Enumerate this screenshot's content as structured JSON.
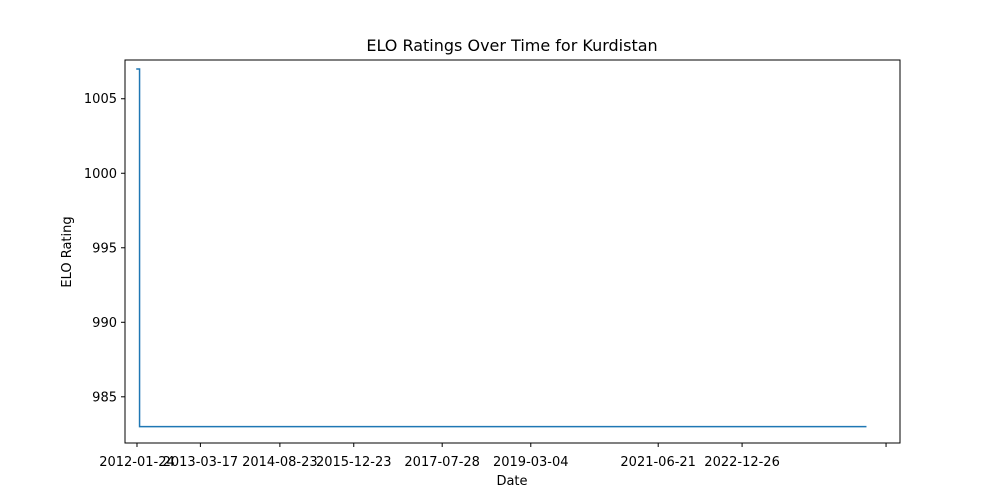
{
  "chart_data": {
    "type": "line",
    "title": "ELO Ratings Over Time for Kurdistan",
    "xlabel": "Date",
    "ylabel": "ELO Rating",
    "x_axis_type": "date",
    "xlim": [
      "2011-11-06",
      "2025-11-01"
    ],
    "ylim": [
      981.9,
      1007.6
    ],
    "x_ticks": [
      {
        "date": "2012-01-24",
        "label": "2012-01-24"
      },
      {
        "date": "2013-03-17",
        "label": "2013-03-17"
      },
      {
        "date": "2014-08-23",
        "label": "2014-08-23"
      },
      {
        "date": "2015-12-23",
        "label": "2015-12-23"
      },
      {
        "date": "2017-07-28",
        "label": "2017-07-28"
      },
      {
        "date": "2019-03-04",
        "label": "2019-03-04"
      },
      {
        "date": "2021-06-21",
        "label": "2021-06-21"
      },
      {
        "date": "2022-12-26",
        "label": "2022-12-26"
      },
      {
        "date": "2025-08-01",
        "label": ""
      }
    ],
    "y_ticks": [
      985,
      990,
      995,
      1000,
      1005
    ],
    "grid": false,
    "legend": "none",
    "series": [
      {
        "color": "#1f77b4",
        "x": [
          "2012-01-24",
          "2012-01-24",
          "2012-02-10",
          "2012-02-10",
          "2025-03-20"
        ],
        "y": [
          1007,
          1007,
          1007,
          983,
          983
        ]
      }
    ]
  }
}
